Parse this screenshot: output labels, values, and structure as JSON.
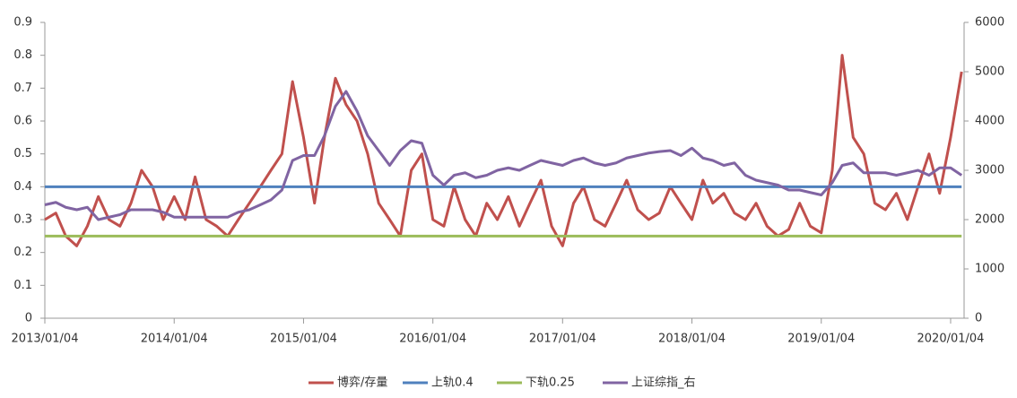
{
  "chart_data": {
    "type": "line",
    "x": [
      "2013/01/04",
      "2013/02/04",
      "2013/03/04",
      "2013/04/04",
      "2013/05/04",
      "2013/06/04",
      "2013/07/04",
      "2013/08/04",
      "2013/09/04",
      "2013/10/04",
      "2013/11/04",
      "2013/12/04",
      "2014/01/04",
      "2014/02/04",
      "2014/03/04",
      "2014/04/04",
      "2014/05/04",
      "2014/06/04",
      "2014/07/04",
      "2014/08/04",
      "2014/09/04",
      "2014/10/04",
      "2014/11/04",
      "2014/12/04",
      "2015/01/04",
      "2015/02/04",
      "2015/03/04",
      "2015/04/04",
      "2015/05/04",
      "2015/06/04",
      "2015/07/04",
      "2015/08/04",
      "2015/09/04",
      "2015/10/04",
      "2015/11/04",
      "2015/12/04",
      "2016/01/04",
      "2016/02/04",
      "2016/03/04",
      "2016/04/04",
      "2016/05/04",
      "2016/06/04",
      "2016/07/04",
      "2016/08/04",
      "2016/09/04",
      "2016/10/04",
      "2016/11/04",
      "2016/12/04",
      "2017/01/04",
      "2017/02/04",
      "2017/03/04",
      "2017/04/04",
      "2017/05/04",
      "2017/06/04",
      "2017/07/04",
      "2017/08/04",
      "2017/09/04",
      "2017/10/04",
      "2017/11/04",
      "2017/12/04",
      "2018/01/04",
      "2018/02/04",
      "2018/03/04",
      "2018/04/04",
      "2018/05/04",
      "2018/06/04",
      "2018/07/04",
      "2018/08/04",
      "2018/09/04",
      "2018/10/04",
      "2018/11/04",
      "2018/12/04",
      "2019/01/04",
      "2019/02/04",
      "2019/03/04",
      "2019/04/04",
      "2019/05/04",
      "2019/06/04",
      "2019/07/04",
      "2019/08/04",
      "2019/09/04",
      "2019/10/04",
      "2019/11/04",
      "2019/12/04",
      "2020/01/04",
      "2020/02/04"
    ],
    "xlim": [
      "2013/01/04",
      "2020/02/11"
    ],
    "xticks": [
      "2013/01/04",
      "2014/01/04",
      "2015/01/04",
      "2016/01/04",
      "2017/01/04",
      "2018/01/04",
      "2019/01/04",
      "2020/01/04"
    ],
    "ylim": [
      0,
      0.9
    ],
    "yticks": [
      0,
      0.1,
      0.2,
      0.3,
      0.4,
      0.5,
      0.6,
      0.7,
      0.8,
      0.9
    ],
    "y2lim": [
      0,
      6000
    ],
    "y2ticks": [
      0,
      1000,
      2000,
      3000,
      4000,
      5000,
      6000
    ],
    "series": [
      {
        "name": "博弈/存量",
        "color": "#c0504d",
        "values": [
          0.3,
          0.32,
          0.25,
          0.22,
          0.28,
          0.37,
          0.3,
          0.28,
          0.35,
          0.45,
          0.4,
          0.3,
          0.37,
          0.3,
          0.43,
          0.3,
          0.28,
          0.25,
          0.3,
          0.35,
          0.4,
          0.45,
          0.5,
          0.72,
          0.55,
          0.35,
          0.55,
          0.73,
          0.65,
          0.6,
          0.5,
          0.35,
          0.3,
          0.25,
          0.45,
          0.5,
          0.3,
          0.28,
          0.4,
          0.3,
          0.25,
          0.35,
          0.3,
          0.37,
          0.28,
          0.35,
          0.42,
          0.28,
          0.22,
          0.35,
          0.4,
          0.3,
          0.28,
          0.35,
          0.42,
          0.33,
          0.3,
          0.32,
          0.4,
          0.35,
          0.3,
          0.42,
          0.35,
          0.38,
          0.32,
          0.3,
          0.35,
          0.28,
          0.25,
          0.27,
          0.35,
          0.28,
          0.26,
          0.45,
          0.8,
          0.55,
          0.5,
          0.35,
          0.33,
          0.38,
          0.3,
          0.4,
          0.5,
          0.38,
          0.55,
          0.75
        ]
      },
      {
        "name": "上轨0.4",
        "color": "#4f81bd",
        "values": [
          0.4,
          0.4,
          0.4,
          0.4,
          0.4,
          0.4,
          0.4,
          0.4,
          0.4,
          0.4,
          0.4,
          0.4,
          0.4,
          0.4,
          0.4,
          0.4,
          0.4,
          0.4,
          0.4,
          0.4,
          0.4,
          0.4,
          0.4,
          0.4,
          0.4,
          0.4,
          0.4,
          0.4,
          0.4,
          0.4,
          0.4,
          0.4,
          0.4,
          0.4,
          0.4,
          0.4,
          0.4,
          0.4,
          0.4,
          0.4,
          0.4,
          0.4,
          0.4,
          0.4,
          0.4,
          0.4,
          0.4,
          0.4,
          0.4,
          0.4,
          0.4,
          0.4,
          0.4,
          0.4,
          0.4,
          0.4,
          0.4,
          0.4,
          0.4,
          0.4,
          0.4,
          0.4,
          0.4,
          0.4,
          0.4,
          0.4,
          0.4,
          0.4,
          0.4,
          0.4,
          0.4,
          0.4,
          0.4,
          0.4,
          0.4,
          0.4,
          0.4,
          0.4,
          0.4,
          0.4,
          0.4,
          0.4,
          0.4,
          0.4,
          0.4,
          0.4
        ]
      },
      {
        "name": "下轨0.25",
        "color": "#9bbb59",
        "values": [
          0.25,
          0.25,
          0.25,
          0.25,
          0.25,
          0.25,
          0.25,
          0.25,
          0.25,
          0.25,
          0.25,
          0.25,
          0.25,
          0.25,
          0.25,
          0.25,
          0.25,
          0.25,
          0.25,
          0.25,
          0.25,
          0.25,
          0.25,
          0.25,
          0.25,
          0.25,
          0.25,
          0.25,
          0.25,
          0.25,
          0.25,
          0.25,
          0.25,
          0.25,
          0.25,
          0.25,
          0.25,
          0.25,
          0.25,
          0.25,
          0.25,
          0.25,
          0.25,
          0.25,
          0.25,
          0.25,
          0.25,
          0.25,
          0.25,
          0.25,
          0.25,
          0.25,
          0.25,
          0.25,
          0.25,
          0.25,
          0.25,
          0.25,
          0.25,
          0.25,
          0.25,
          0.25,
          0.25,
          0.25,
          0.25,
          0.25,
          0.25,
          0.25,
          0.25,
          0.25,
          0.25,
          0.25,
          0.25,
          0.25,
          0.25,
          0.25,
          0.25,
          0.25,
          0.25,
          0.25,
          0.25,
          0.25,
          0.25,
          0.25,
          0.25,
          0.25
        ]
      },
      {
        "name": "上证综指_右",
        "color": "#8064a2",
        "axis": "y2",
        "values": [
          2300,
          2350,
          2250,
          2200,
          2250,
          2000,
          2050,
          2100,
          2200,
          2200,
          2200,
          2150,
          2050,
          2050,
          2050,
          2050,
          2050,
          2050,
          2150,
          2200,
          2300,
          2400,
          2600,
          3200,
          3300,
          3300,
          3700,
          4300,
          4600,
          4200,
          3700,
          3400,
          3100,
          3400,
          3600,
          3550,
          2900,
          2700,
          2900,
          2950,
          2850,
          2900,
          3000,
          3050,
          3000,
          3100,
          3200,
          3150,
          3100,
          3200,
          3250,
          3150,
          3100,
          3150,
          3250,
          3300,
          3350,
          3380,
          3400,
          3300,
          3450,
          3250,
          3200,
          3100,
          3150,
          2900,
          2800,
          2750,
          2700,
          2600,
          2600,
          2550,
          2500,
          2750,
          3100,
          3150,
          2950,
          2950,
          2950,
          2900,
          2950,
          3000,
          2900,
          3050,
          3050,
          2900
        ]
      }
    ]
  }
}
